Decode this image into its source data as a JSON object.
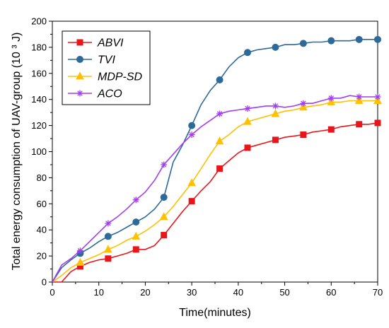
{
  "chart_data": {
    "type": "line",
    "xlabel": "Time(minutes)",
    "ylabel": "Total energy consumption of UAV-group (10 ³ J)",
    "xlim": [
      0,
      70
    ],
    "ylim": [
      0,
      200
    ],
    "x_ticks": [
      0,
      10,
      20,
      30,
      40,
      50,
      60,
      70
    ],
    "y_ticks": [
      0,
      20,
      40,
      60,
      80,
      100,
      120,
      140,
      160,
      180,
      200
    ],
    "grid": false,
    "legend_position": "top-left",
    "series": [
      {
        "name": "ABVI",
        "color": "#e8161b",
        "marker": "square",
        "x": [
          0,
          2,
          4,
          6,
          8,
          10,
          12,
          14,
          16,
          18,
          20,
          22,
          24,
          26,
          28,
          30,
          32,
          34,
          36,
          38,
          40,
          42,
          44,
          46,
          48,
          50,
          52,
          54,
          56,
          58,
          60,
          62,
          64,
          66,
          68,
          70
        ],
        "y": [
          0,
          0,
          8,
          12,
          15,
          17,
          18,
          20,
          22,
          25,
          25,
          28,
          36,
          45,
          54,
          62,
          70,
          77,
          87,
          93,
          99,
          103,
          105,
          107,
          109,
          111,
          112,
          113,
          115,
          116,
          117,
          119,
          120,
          121,
          121,
          122
        ],
        "marker_x": [
          6,
          12,
          18,
          24,
          30,
          36,
          42,
          48,
          54,
          60,
          66,
          70
        ],
        "marker_y": [
          12,
          18,
          25,
          36,
          62,
          87,
          103,
          109,
          113,
          117,
          121,
          122
        ]
      },
      {
        "name": "TVI",
        "color": "#2d6a99",
        "marker": "circle",
        "x": [
          0,
          2,
          4,
          6,
          8,
          10,
          12,
          14,
          16,
          18,
          20,
          22,
          24,
          26,
          28,
          30,
          32,
          34,
          36,
          38,
          40,
          42,
          44,
          46,
          48,
          50,
          52,
          54,
          56,
          58,
          60,
          62,
          64,
          66,
          68,
          70
        ],
        "y": [
          0,
          11,
          17,
          22,
          26,
          31,
          35,
          38,
          42,
          46,
          50,
          56,
          65,
          92,
          105,
          120,
          136,
          147,
          155,
          165,
          172,
          176,
          178,
          179,
          180,
          182,
          182,
          183,
          184,
          184,
          185,
          185,
          185,
          186,
          186,
          186
        ],
        "marker_x": [
          6,
          12,
          18,
          24,
          30,
          36,
          42,
          48,
          54,
          60,
          66,
          70
        ],
        "marker_y": [
          22,
          35,
          46,
          65,
          120,
          155,
          176,
          180,
          183,
          185,
          186,
          186
        ]
      },
      {
        "name": "MDP-SD",
        "color": "#ffc000",
        "marker": "triangle",
        "x": [
          0,
          2,
          4,
          6,
          8,
          10,
          12,
          14,
          16,
          18,
          20,
          22,
          24,
          26,
          28,
          30,
          32,
          34,
          36,
          38,
          40,
          42,
          44,
          46,
          48,
          50,
          52,
          54,
          56,
          58,
          60,
          62,
          64,
          66,
          68,
          70
        ],
        "y": [
          0,
          5,
          11,
          15,
          18,
          21,
          25,
          28,
          32,
          35,
          39,
          44,
          50,
          58,
          67,
          76,
          87,
          98,
          108,
          113,
          119,
          123,
          125,
          127,
          129,
          131,
          132,
          134,
          135,
          136,
          138,
          138,
          139,
          139,
          139,
          139
        ],
        "marker_x": [
          6,
          12,
          18,
          24,
          30,
          36,
          42,
          48,
          54,
          60,
          66,
          70
        ],
        "marker_y": [
          15,
          25,
          35,
          50,
          76,
          108,
          123,
          129,
          134,
          138,
          139,
          139
        ]
      },
      {
        "name": "ACO",
        "color": "#a13ff0",
        "marker": "star",
        "x": [
          0,
          2,
          4,
          6,
          8,
          10,
          12,
          14,
          16,
          18,
          20,
          22,
          24,
          26,
          28,
          30,
          32,
          34,
          36,
          38,
          40,
          42,
          44,
          46,
          48,
          50,
          52,
          54,
          56,
          58,
          60,
          62,
          64,
          66,
          68,
          70
        ],
        "y": [
          0,
          13,
          18,
          24,
          31,
          38,
          45,
          50,
          56,
          63,
          69,
          78,
          90,
          98,
          106,
          113,
          119,
          124,
          129,
          131,
          132,
          133,
          134,
          135,
          135,
          134,
          135,
          137,
          137,
          139,
          141,
          141,
          143,
          142,
          142,
          142
        ],
        "marker_x": [
          6,
          12,
          18,
          24,
          30,
          36,
          42,
          48,
          54,
          60,
          66,
          70
        ],
        "marker_y": [
          24,
          45,
          63,
          90,
          113,
          129,
          133,
          135,
          137,
          141,
          142,
          142
        ]
      }
    ]
  }
}
